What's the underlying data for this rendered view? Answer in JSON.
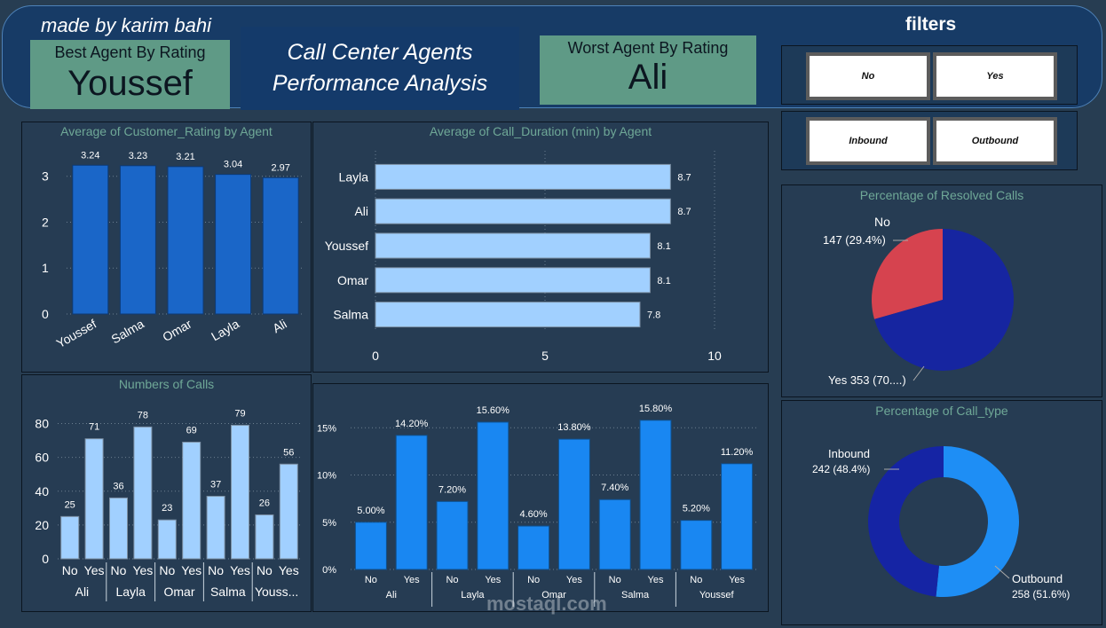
{
  "header": {
    "made_by": "made by karim bahi",
    "best_label": "Best Agent By Rating",
    "best_value": "Youssef",
    "title_line1": "Call Center Agents",
    "title_line2": "Performance Analysis",
    "worst_label": "Worst Agent By Rating",
    "worst_value": "Ali"
  },
  "filters": {
    "title": "filters",
    "resolved_options": [
      "No",
      "Yes"
    ],
    "call_type_options": [
      "Inbound",
      "Outbound"
    ]
  },
  "colors": {
    "page_bg": "#273D52",
    "header_bg": "#173B66",
    "kpi_bg": "#5F9A86",
    "panel_title": "#6FA897",
    "bar_dark": "#1A66C8",
    "bar_light": "#A1D0FF",
    "bar_blue": "#1987F2",
    "pie_no": "#D6434F",
    "pie_yes": "#1625A0",
    "donut_outbound": "#1E8EF5",
    "donut_inbound": "#1524A4"
  },
  "chart_data": [
    {
      "type": "bar",
      "title": "Average of Customer_Rating by Agent",
      "categories": [
        "Youssef",
        "Salma",
        "Omar",
        "Layla",
        "Ali"
      ],
      "values": [
        3.24,
        3.23,
        3.21,
        3.04,
        2.97
      ],
      "data_labels": [
        "3.24",
        "3.23",
        "3.21",
        "3.04",
        "2.97"
      ],
      "y_ticks": [
        "0",
        "1",
        "2",
        "3"
      ],
      "ylim": [
        0,
        3.4
      ],
      "grid": true
    },
    {
      "type": "bar",
      "orientation": "horizontal",
      "title": "Average of Call_Duration (min) by Agent",
      "categories": [
        "Layla",
        "Ali",
        "Youssef",
        "Omar",
        "Salma"
      ],
      "values": [
        8.7,
        8.7,
        8.1,
        8.1,
        7.8
      ],
      "data_labels": [
        "8.7",
        "8.7",
        "8.1",
        "8.1",
        "7.8"
      ],
      "x_ticks": [
        "0",
        "5",
        "10"
      ],
      "xlim": [
        0,
        10
      ],
      "grid": true
    },
    {
      "type": "bar",
      "title": "Numbers of Calls",
      "groups": [
        "Ali",
        "Layla",
        "Omar",
        "Salma",
        "Youss..."
      ],
      "subcategories": [
        "No",
        "Yes"
      ],
      "values": [
        25,
        71,
        36,
        78,
        23,
        69,
        37,
        79,
        26,
        56
      ],
      "data_labels": [
        "25",
        "71",
        "36",
        "78",
        "23",
        "69",
        "37",
        "79",
        "26",
        "56"
      ],
      "y_ticks": [
        "0",
        "20",
        "40",
        "60",
        "80"
      ],
      "ylim": [
        0,
        85
      ],
      "grid": true
    },
    {
      "type": "bar",
      "title": "",
      "groups": [
        "Ali",
        "Layla",
        "Omar",
        "Salma",
        "Youssef"
      ],
      "subcategories": [
        "No",
        "Yes"
      ],
      "values": [
        5.0,
        14.2,
        7.2,
        15.6,
        4.6,
        13.8,
        7.4,
        15.8,
        5.2,
        11.2
      ],
      "data_labels": [
        "5.00%",
        "14.20%",
        "7.20%",
        "15.60%",
        "4.60%",
        "13.80%",
        "7.40%",
        "15.80%",
        "5.20%",
        "11.20%"
      ],
      "y_ticks": [
        "0%",
        "5%",
        "10%",
        "15%"
      ],
      "ylim": [
        0,
        17
      ],
      "grid": true
    },
    {
      "type": "pie",
      "title": "Percentage of Resolved Calls",
      "labels": [
        "No",
        "Yes"
      ],
      "values": [
        147,
        353
      ],
      "label_text": [
        "147 (29.4%)",
        "Yes 353 (70....)"
      ]
    },
    {
      "type": "pie",
      "donut": true,
      "title": "Percentage of Call_type",
      "labels": [
        "Inbound",
        "Outbound"
      ],
      "values": [
        242,
        258
      ],
      "label_text": [
        "242 (48.4%)",
        "258 (51.6%)"
      ]
    }
  ],
  "watermark": {
    "brand": "mostaql.com"
  }
}
